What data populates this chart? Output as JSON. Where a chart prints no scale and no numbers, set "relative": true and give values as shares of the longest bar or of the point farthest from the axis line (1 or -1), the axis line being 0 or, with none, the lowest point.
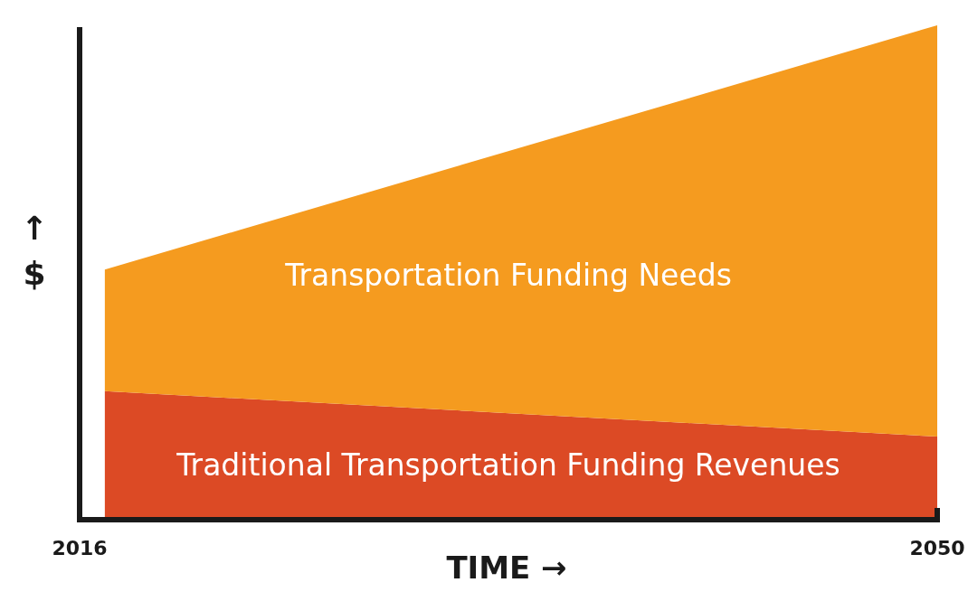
{
  "chart_data": {
    "type": "area",
    "stacked": true,
    "relative": true,
    "xlabel": "TIME →",
    "ylabel": "↑ $",
    "x": [
      2017,
      2050
    ],
    "xlim": [
      2016,
      2050
    ],
    "xticks": [
      2016,
      2050
    ],
    "legend": false,
    "grid": false,
    "series": [
      {
        "name": "Traditional Transportation Funding Revenues",
        "color": "#dc4a25",
        "values": [
          0.26,
          0.168
        ]
      },
      {
        "name": "Transportation Funding Needs",
        "color": "#f59b1f",
        "values": [
          0.246,
          0.832
        ]
      }
    ]
  }
}
